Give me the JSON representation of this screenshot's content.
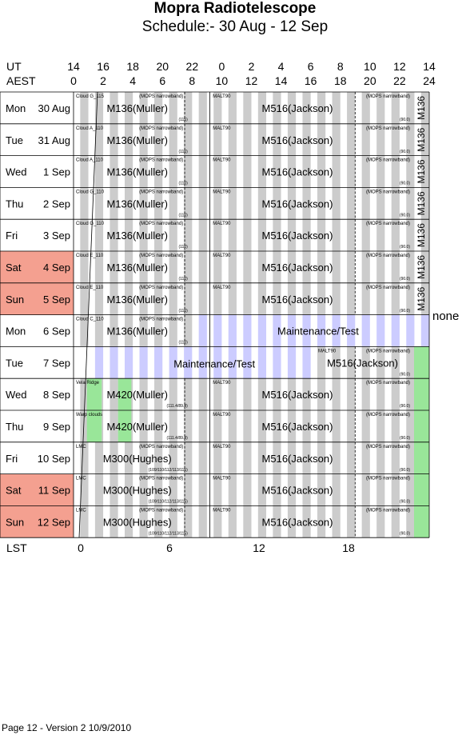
{
  "header": {
    "title": "Mopra Radiotelescope",
    "subtitle": "Schedule:- 30 Aug - 12 Sep"
  },
  "axes": {
    "ut_label": "UT",
    "aest_label": "AEST",
    "lst_label": "LST",
    "ut_ticks": [
      "14",
      "16",
      "18",
      "20",
      "22",
      "0",
      "2",
      "4",
      "6",
      "8",
      "10",
      "12",
      "14"
    ],
    "aest_ticks": [
      "0",
      "2",
      "4",
      "6",
      "8",
      "10",
      "12",
      "14",
      "16",
      "18",
      "20",
      "22",
      "24"
    ],
    "lst_ticks": [
      "0",
      "6",
      "12",
      "18"
    ]
  },
  "colors": {
    "weekend": "#f4a090",
    "maintenance": "#ccccff",
    "green": "#99e699",
    "grey": "#cccccc"
  },
  "rows": [
    {
      "day": "Mon",
      "date": "30 Aug",
      "weekend": false,
      "left_label": "Cloud G_115",
      "proj1": "M136(Muller)",
      "mops": "(MOPS narrowband)",
      "small1": "(115)",
      "malt": "MALT90",
      "proj2": "M516(Jackson)",
      "mops2": "(MOPS narrowband)",
      "small2": "(90.0)",
      "vert": "M136"
    },
    {
      "day": "Tue",
      "date": "31 Aug",
      "weekend": false,
      "left_label": "Cloud A_110",
      "proj1": "M136(Muller)",
      "mops": "(MOPS narrowband)",
      "small1": "(110)",
      "malt": "MALT90",
      "proj2": "M516(Jackson)",
      "mops2": "(MOPS narrowband)",
      "small2": "(90.0)",
      "vert": "M136"
    },
    {
      "day": "Wed",
      "date": "1  Sep",
      "weekend": false,
      "left_label": "Cloud A_110",
      "proj1": "M136(Muller)",
      "mops": "(MOPS narrowband)",
      "small1": "(110)",
      "malt": "MALT90",
      "proj2": "M516(Jackson)",
      "mops2": "(MOPS narrowband)",
      "small2": "(90.0)",
      "vert": "M136"
    },
    {
      "day": "Thu",
      "date": "2  Sep",
      "weekend": false,
      "left_label": "Cloud G_110",
      "proj1": "M136(Muller)",
      "mops": "(MOPS narrowband)",
      "small1": "(110)",
      "malt": "MALT90",
      "proj2": "M516(Jackson)",
      "mops2": "(MOPS narrowband)",
      "small2": "(90.0)",
      "vert": "M136"
    },
    {
      "day": "Fri",
      "date": "3  Sep",
      "weekend": false,
      "left_label": "Cloud G_110",
      "proj1": "M136(Muller)",
      "mops": "(MOPS narrowband)",
      "small1": "(110)",
      "malt": "MALT90",
      "proj2": "M516(Jackson)",
      "mops2": "(MOPS narrowband)",
      "small2": "(90.0)",
      "vert": "M136"
    },
    {
      "day": "Sat",
      "date": "4  Sep",
      "weekend": true,
      "left_label": "Cloud E_110",
      "proj1": "M136(Muller)",
      "mops": "(MOPS narrowband)",
      "small1": "(110)",
      "malt": "MALT90",
      "proj2": "M516(Jackson)",
      "mops2": "(MOPS narrowband)",
      "small2": "(90.0)",
      "vert": "M136"
    },
    {
      "day": "Sun",
      "date": "5  Sep",
      "weekend": true,
      "left_label": "Cloud E_110",
      "proj1": "M136(Muller)",
      "mops": "(MOPS narrowband)",
      "small1": "(110)",
      "malt": "MALT90",
      "proj2": "M516(Jackson)",
      "mops2": "(MOPS narrowband)",
      "small2": "(90.0)",
      "vert": "M136"
    },
    {
      "day": "Mon",
      "date": "6  Sep",
      "weekend": false,
      "left_label": "Cloud C_110",
      "proj1": "M136(Muller)",
      "mops": "(MOPS narrowband)",
      "small1": "(110)",
      "malt": "",
      "proj2": "Maintenance/Test",
      "mops2": "",
      "small2": "",
      "vert": ""
    },
    {
      "day": "Tue",
      "date": "7  Sep",
      "weekend": false,
      "left_label": "",
      "proj1": "Maintenance/Test",
      "mops": "",
      "small1": "",
      "malt": "MALT90",
      "proj2": "M516(Jackson)",
      "mops2": "(MOPS narrowband)",
      "small2": "(90.0)",
      "vert": ""
    },
    {
      "day": "Wed",
      "date": "8  Sep",
      "weekend": false,
      "left_label": "Vela Ridge",
      "proj1": "M420(Muller)",
      "mops": "",
      "small1": "(111.4/89.4)",
      "malt": "MALT90",
      "proj2": "M516(Jackson)",
      "mops2": "(MOPS narrowband)",
      "small2": "(90.0)",
      "vert": ""
    },
    {
      "day": "Thu",
      "date": "9  Sep",
      "weekend": false,
      "left_label": "Warp clouds",
      "proj1": "M420(Muller)",
      "mops": "",
      "small1": "(111.4/89.4)",
      "malt": "MALT90",
      "proj2": "M516(Jackson)",
      "mops2": "(MOPS narrowband)",
      "small2": "(90.0)",
      "vert": ""
    },
    {
      "day": "Fri",
      "date": "10 Sep",
      "weekend": false,
      "left_label": "LMC",
      "proj1": "M300(Hughes)",
      "mops": "(MOPS narrowband)",
      "small1": "(109/110/112/113/115)",
      "malt": "MALT90",
      "proj2": "M516(Jackson)",
      "mops2": "(MOPS narrowband)",
      "small2": "(90.0)",
      "vert": ""
    },
    {
      "day": "Sat",
      "date": "11 Sep",
      "weekend": true,
      "left_label": "LMC",
      "proj1": "M300(Hughes)",
      "mops": "(MOPS narrowband)",
      "small1": "(109/110/112/113/115)",
      "malt": "MALT90",
      "proj2": "M516(Jackson)",
      "mops2": "(MOPS narrowband)",
      "small2": "(90.0)",
      "vert": ""
    },
    {
      "day": "Sun",
      "date": "12 Sep",
      "weekend": true,
      "left_label": "LMC",
      "proj1": "M300(Hughes)",
      "mops": "(MOPS narrowband)",
      "small1": "(109/110/112/113/115)",
      "malt": "MALT90",
      "proj2": "M516(Jackson)",
      "mops2": "(MOPS narrowband)",
      "small2": "(90.0)",
      "vert": ""
    }
  ],
  "side_note": "none",
  "footer": "Page 12 - Version 2  10/9/2010"
}
